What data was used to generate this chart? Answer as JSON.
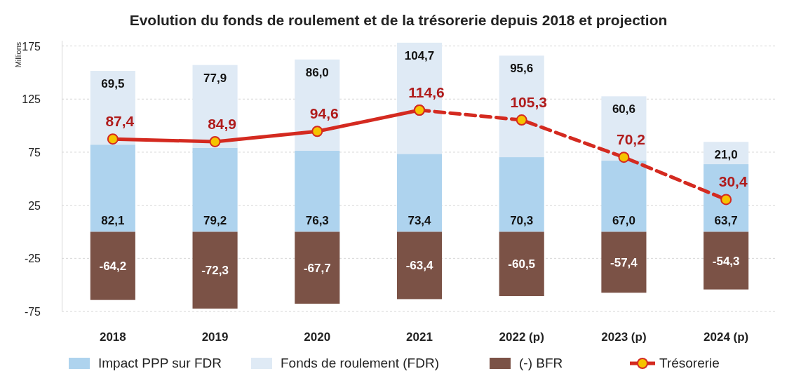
{
  "chart_data": {
    "type": "bar",
    "title": "Evolution du fonds de roulement et de la trésorerie depuis 2018 et projection",
    "ylabel": "Millions",
    "categories": [
      "2018",
      "2019",
      "2020",
      "2021",
      "2022 (p)",
      "2023 (p)",
      "2024 (p)"
    ],
    "stacked": true,
    "ylim": [
      -75,
      180
    ],
    "yticks": [
      -75,
      -25,
      25,
      75,
      125,
      175
    ],
    "grid": "y",
    "legend": "bottom",
    "marker": "circle",
    "series": [
      {
        "name": "Impact PPP sur FDR",
        "color": "#aed3ee",
        "values": [
          82.1,
          79.2,
          76.3,
          73.4,
          70.3,
          67.0,
          63.7
        ],
        "value_labels": [
          "82,1",
          "79,2",
          "76,3",
          "73,4",
          "70,3",
          "67,0",
          "63,7"
        ]
      },
      {
        "name": "Fonds de roulement (FDR)",
        "color": "#dfeaf5",
        "values": [
          69.5,
          77.9,
          86.0,
          104.7,
          95.6,
          60.6,
          21.0
        ],
        "value_labels": [
          "69,5",
          "77,9",
          "86,0",
          "104,7",
          "95,6",
          "60,6",
          "21,0"
        ]
      },
      {
        "name": "(-) BFR",
        "color": "#7b5246",
        "values": [
          -64.2,
          -72.3,
          -67.7,
          -63.4,
          -60.5,
          -57.4,
          -54.3
        ],
        "value_labels": [
          "-64,2",
          "-72,3",
          "-67,7",
          "-63,4",
          "-60,5",
          "-57,4",
          "-54,3"
        ]
      },
      {
        "name": "Trésorerie",
        "type": "line",
        "color": "#d42a20",
        "line_style": "solid",
        "values": [
          87.4,
          84.9,
          94.6,
          114.6,
          null,
          null,
          null
        ],
        "value_labels": [
          "87,4",
          "84,9",
          "94,6",
          "114,6",
          null,
          null,
          null
        ]
      },
      {
        "type": "line",
        "color": "#d42a20",
        "line_style": "dashed",
        "values": [
          null,
          null,
          null,
          114.6,
          105.3,
          70.2,
          30.4
        ],
        "value_labels": [
          null,
          null,
          null,
          null,
          "105,3",
          "70,2",
          "30,4"
        ]
      }
    ]
  }
}
